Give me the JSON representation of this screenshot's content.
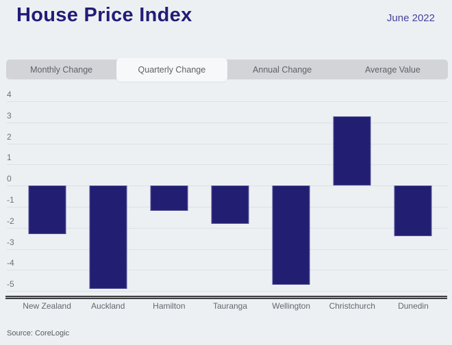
{
  "header": {
    "title": "House Price Index",
    "date": "June 2022"
  },
  "tabs": [
    {
      "label": "Monthly Change",
      "active": false
    },
    {
      "label": "Quarterly Change",
      "active": true
    },
    {
      "label": "Annual Change",
      "active": false
    },
    {
      "label": "Average Value",
      "active": false
    }
  ],
  "chart_data": {
    "type": "bar",
    "title": "Quarterly Change",
    "categories": [
      "New Zealand",
      "Auckland",
      "Hamilton",
      "Tauranga",
      "Wellington",
      "Christchurch",
      "Dunedin"
    ],
    "values": [
      -2.3,
      -4.9,
      -1.2,
      -1.8,
      -4.7,
      3.3,
      -2.4
    ],
    "xlabel": "",
    "ylabel": "",
    "yticks": [
      4,
      3,
      2,
      1,
      0,
      -1,
      -2,
      -3,
      -4,
      -5
    ],
    "ylim": [
      -5.25,
      4.1
    ],
    "grid": true,
    "legend": "none",
    "bar_color": "#221f73"
  },
  "footer": {
    "source": "Source: CoreLogic"
  },
  "colors": {
    "background": "#edf0f3",
    "title_navy": "#221c78",
    "date_navy": "#45429b",
    "tabbar_gray": "#d2d4d8",
    "active_tab": "#f7f8fa",
    "tab_text": "#5d6165",
    "gridline": "#dde0e4",
    "axis_dark": "#3d3d3f",
    "bar_navy": "#221f73",
    "label_gray": "#63676c"
  }
}
